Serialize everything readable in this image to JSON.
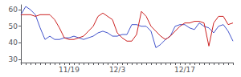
{
  "chart_data": {
    "type": "line",
    "categories": [
      null,
      null,
      null,
      null,
      null,
      null,
      null,
      null,
      null,
      null,
      "11/19",
      null,
      null,
      null,
      null,
      null,
      null,
      null,
      null,
      null,
      "12/3",
      null,
      null,
      null,
      null,
      null,
      null,
      null,
      null,
      null,
      null,
      null,
      null,
      null,
      "12/17",
      null,
      null,
      null,
      null,
      null,
      null,
      null,
      null,
      null,
      null
    ],
    "series": [
      {
        "color": "#4455cc",
        "values": [
          57,
          62,
          60,
          57,
          49,
          42,
          44,
          42,
          42,
          43,
          43,
          44,
          43,
          42,
          43,
          44,
          46,
          47,
          46,
          44,
          44,
          45,
          45,
          51,
          51,
          50,
          50,
          47,
          37,
          39,
          42,
          44,
          50,
          51,
          51,
          49,
          48,
          52,
          50,
          49,
          46,
          50,
          51,
          47,
          41
        ]
      },
      {
        "color": "#cc2222",
        "values": [
          57,
          57,
          57,
          56,
          57,
          57,
          57,
          54,
          49,
          43,
          42,
          42,
          43,
          44,
          47,
          50,
          56,
          58,
          56,
          54,
          46,
          43,
          41,
          41,
          45,
          59,
          56,
          50,
          47,
          44,
          42,
          44,
          47,
          50,
          52,
          52,
          53,
          53,
          52,
          38,
          52,
          56,
          56,
          51,
          52
        ]
      }
    ],
    "ylim": [
      28,
      63
    ],
    "yticks": [
      30,
      40,
      50,
      60
    ],
    "grid": false
  }
}
